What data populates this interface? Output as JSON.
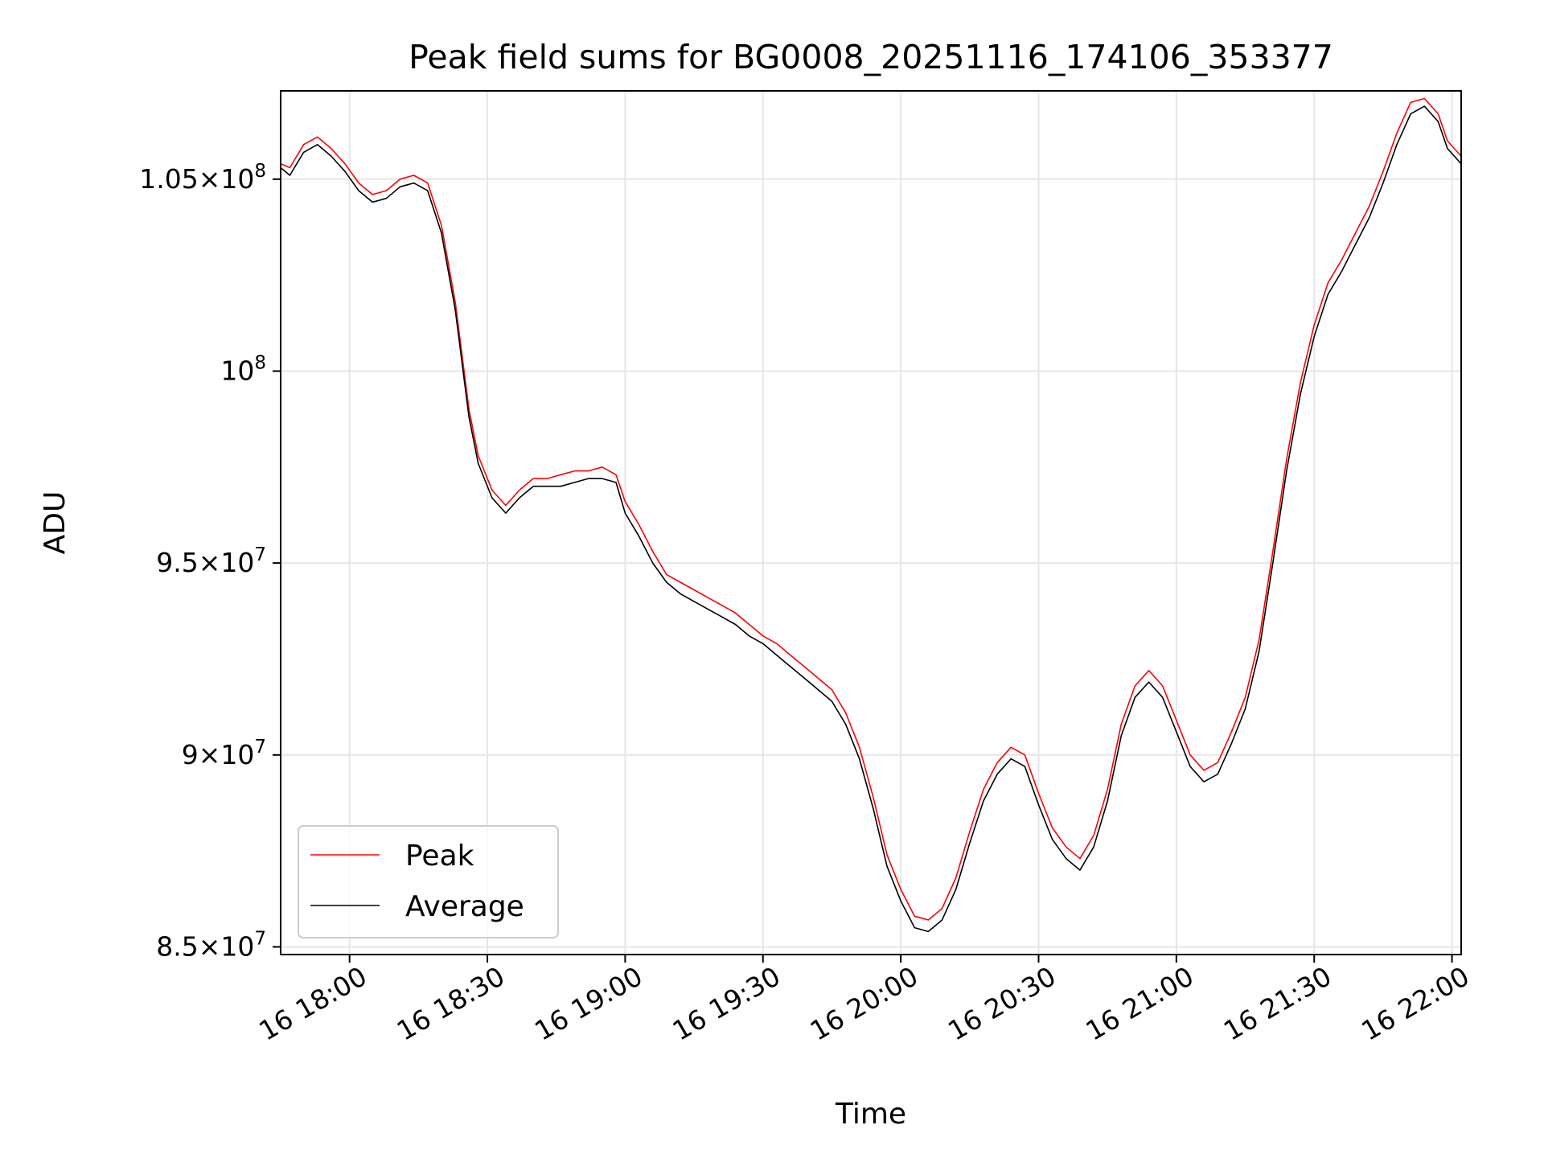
{
  "chart_data": {
    "type": "line",
    "title": "Peak field sums for BG0008_20251116_174106_353377",
    "xlabel": "Time",
    "ylabel": "ADU",
    "x_unit": "time of day on day 16 (HH:MM)",
    "xlim": [
      "17:45",
      "22:02"
    ],
    "ylim": [
      84800000,
      107300000
    ],
    "x_ticks": [
      "16 18:00",
      "16 18:30",
      "16 19:00",
      "16 19:30",
      "16 20:00",
      "16 20:30",
      "16 21:00",
      "16 21:30",
      "16 22:00"
    ],
    "y_ticks": [
      {
        "value": 85000000,
        "mantissa": "8.5",
        "exp": "7"
      },
      {
        "value": 90000000,
        "mantissa": "9",
        "exp": "7"
      },
      {
        "value": 95000000,
        "mantissa": "9.5",
        "exp": "7"
      },
      {
        "value": 100000000,
        "mantissa": "",
        "exp": "8"
      },
      {
        "value": 105000000,
        "mantissa": "1.05",
        "exp": "8"
      }
    ],
    "grid": true,
    "legend_position": "lower-left",
    "series": [
      {
        "name": "Peak",
        "color": "#ff0000",
        "points": [
          [
            "17:45",
            105400000
          ],
          [
            "17:47",
            105300000
          ],
          [
            "17:50",
            105900000
          ],
          [
            "17:53",
            106100000
          ],
          [
            "17:56",
            105800000
          ],
          [
            "17:59",
            105400000
          ],
          [
            "18:02",
            104900000
          ],
          [
            "18:05",
            104600000
          ],
          [
            "18:08",
            104700000
          ],
          [
            "18:11",
            105000000
          ],
          [
            "18:14",
            105100000
          ],
          [
            "18:17",
            104900000
          ],
          [
            "18:20",
            103800000
          ],
          [
            "18:23",
            101800000
          ],
          [
            "18:26",
            99000000
          ],
          [
            "18:28",
            97800000
          ],
          [
            "18:31",
            96900000
          ],
          [
            "18:34",
            96500000
          ],
          [
            "18:37",
            96900000
          ],
          [
            "18:40",
            97200000
          ],
          [
            "18:43",
            97200000
          ],
          [
            "18:46",
            97300000
          ],
          [
            "18:49",
            97400000
          ],
          [
            "18:52",
            97400000
          ],
          [
            "18:55",
            97500000
          ],
          [
            "18:58",
            97300000
          ],
          [
            "19:00",
            96600000
          ],
          [
            "19:03",
            96000000
          ],
          [
            "19:06",
            95300000
          ],
          [
            "19:09",
            94700000
          ],
          [
            "19:12",
            94500000
          ],
          [
            "19:15",
            94300000
          ],
          [
            "19:18",
            94100000
          ],
          [
            "19:21",
            93900000
          ],
          [
            "19:24",
            93700000
          ],
          [
            "19:27",
            93400000
          ],
          [
            "19:30",
            93100000
          ],
          [
            "19:33",
            92900000
          ],
          [
            "19:36",
            92600000
          ],
          [
            "19:39",
            92300000
          ],
          [
            "19:42",
            92000000
          ],
          [
            "19:45",
            91700000
          ],
          [
            "19:48",
            91100000
          ],
          [
            "19:51",
            90200000
          ],
          [
            "19:54",
            88900000
          ],
          [
            "19:57",
            87400000
          ],
          [
            "20:00",
            86500000
          ],
          [
            "20:03",
            85800000
          ],
          [
            "20:06",
            85700000
          ],
          [
            "20:09",
            86000000
          ],
          [
            "20:12",
            86800000
          ],
          [
            "20:15",
            88000000
          ],
          [
            "20:18",
            89100000
          ],
          [
            "20:21",
            89800000
          ],
          [
            "20:24",
            90200000
          ],
          [
            "20:27",
            90000000
          ],
          [
            "20:30",
            89000000
          ],
          [
            "20:33",
            88100000
          ],
          [
            "20:36",
            87600000
          ],
          [
            "20:39",
            87300000
          ],
          [
            "20:42",
            87900000
          ],
          [
            "20:45",
            89100000
          ],
          [
            "20:48",
            90800000
          ],
          [
            "20:51",
            91800000
          ],
          [
            "20:54",
            92200000
          ],
          [
            "20:57",
            91800000
          ],
          [
            "21:00",
            90900000
          ],
          [
            "21:03",
            90000000
          ],
          [
            "21:06",
            89600000
          ],
          [
            "21:09",
            89800000
          ],
          [
            "21:12",
            90600000
          ],
          [
            "21:15",
            91500000
          ],
          [
            "21:18",
            93000000
          ],
          [
            "21:21",
            95300000
          ],
          [
            "21:24",
            97700000
          ],
          [
            "21:27",
            99700000
          ],
          [
            "21:30",
            101200000
          ],
          [
            "21:33",
            102300000
          ],
          [
            "21:36",
            102900000
          ],
          [
            "21:39",
            103600000
          ],
          [
            "21:42",
            104300000
          ],
          [
            "21:45",
            105200000
          ],
          [
            "21:48",
            106200000
          ],
          [
            "21:51",
            107000000
          ],
          [
            "21:54",
            107100000
          ],
          [
            "21:57",
            106700000
          ],
          [
            "21:59",
            106000000
          ],
          [
            "22:02",
            105600000
          ]
        ]
      },
      {
        "name": "Average",
        "color": "#000000",
        "points": [
          [
            "17:45",
            105300000
          ],
          [
            "17:47",
            105100000
          ],
          [
            "17:50",
            105700000
          ],
          [
            "17:53",
            105900000
          ],
          [
            "17:56",
            105600000
          ],
          [
            "17:59",
            105200000
          ],
          [
            "18:02",
            104700000
          ],
          [
            "18:05",
            104400000
          ],
          [
            "18:08",
            104500000
          ],
          [
            "18:11",
            104800000
          ],
          [
            "18:14",
            104900000
          ],
          [
            "18:17",
            104700000
          ],
          [
            "18:20",
            103600000
          ],
          [
            "18:23",
            101600000
          ],
          [
            "18:26",
            98800000
          ],
          [
            "18:28",
            97600000
          ],
          [
            "18:31",
            96700000
          ],
          [
            "18:34",
            96300000
          ],
          [
            "18:37",
            96700000
          ],
          [
            "18:40",
            97000000
          ],
          [
            "18:43",
            97000000
          ],
          [
            "18:46",
            97000000
          ],
          [
            "18:49",
            97100000
          ],
          [
            "18:52",
            97200000
          ],
          [
            "18:55",
            97200000
          ],
          [
            "18:58",
            97100000
          ],
          [
            "19:00",
            96300000
          ],
          [
            "19:03",
            95700000
          ],
          [
            "19:06",
            95000000
          ],
          [
            "19:09",
            94500000
          ],
          [
            "19:12",
            94200000
          ],
          [
            "19:15",
            94000000
          ],
          [
            "19:18",
            93800000
          ],
          [
            "19:21",
            93600000
          ],
          [
            "19:24",
            93400000
          ],
          [
            "19:27",
            93100000
          ],
          [
            "19:30",
            92900000
          ],
          [
            "19:33",
            92600000
          ],
          [
            "19:36",
            92300000
          ],
          [
            "19:39",
            92000000
          ],
          [
            "19:42",
            91700000
          ],
          [
            "19:45",
            91400000
          ],
          [
            "19:48",
            90800000
          ],
          [
            "19:51",
            89900000
          ],
          [
            "19:54",
            88600000
          ],
          [
            "19:57",
            87100000
          ],
          [
            "20:00",
            86200000
          ],
          [
            "20:03",
            85500000
          ],
          [
            "20:06",
            85400000
          ],
          [
            "20:09",
            85700000
          ],
          [
            "20:12",
            86500000
          ],
          [
            "20:15",
            87700000
          ],
          [
            "20:18",
            88800000
          ],
          [
            "20:21",
            89500000
          ],
          [
            "20:24",
            89900000
          ],
          [
            "20:27",
            89700000
          ],
          [
            "20:30",
            88700000
          ],
          [
            "20:33",
            87800000
          ],
          [
            "20:36",
            87300000
          ],
          [
            "20:39",
            87000000
          ],
          [
            "20:42",
            87600000
          ],
          [
            "20:45",
            88800000
          ],
          [
            "20:48",
            90500000
          ],
          [
            "20:51",
            91500000
          ],
          [
            "20:54",
            91900000
          ],
          [
            "20:57",
            91500000
          ],
          [
            "21:00",
            90600000
          ],
          [
            "21:03",
            89700000
          ],
          [
            "21:06",
            89300000
          ],
          [
            "21:09",
            89500000
          ],
          [
            "21:12",
            90300000
          ],
          [
            "21:15",
            91200000
          ],
          [
            "21:18",
            92700000
          ],
          [
            "21:21",
            95000000
          ],
          [
            "21:24",
            97400000
          ],
          [
            "21:27",
            99400000
          ],
          [
            "21:30",
            100900000
          ],
          [
            "21:33",
            102000000
          ],
          [
            "21:36",
            102600000
          ],
          [
            "21:39",
            103300000
          ],
          [
            "21:42",
            104000000
          ],
          [
            "21:45",
            104900000
          ],
          [
            "21:48",
            105900000
          ],
          [
            "21:51",
            106700000
          ],
          [
            "21:54",
            106900000
          ],
          [
            "21:57",
            106500000
          ],
          [
            "21:59",
            105800000
          ],
          [
            "22:02",
            105400000
          ]
        ]
      }
    ]
  }
}
